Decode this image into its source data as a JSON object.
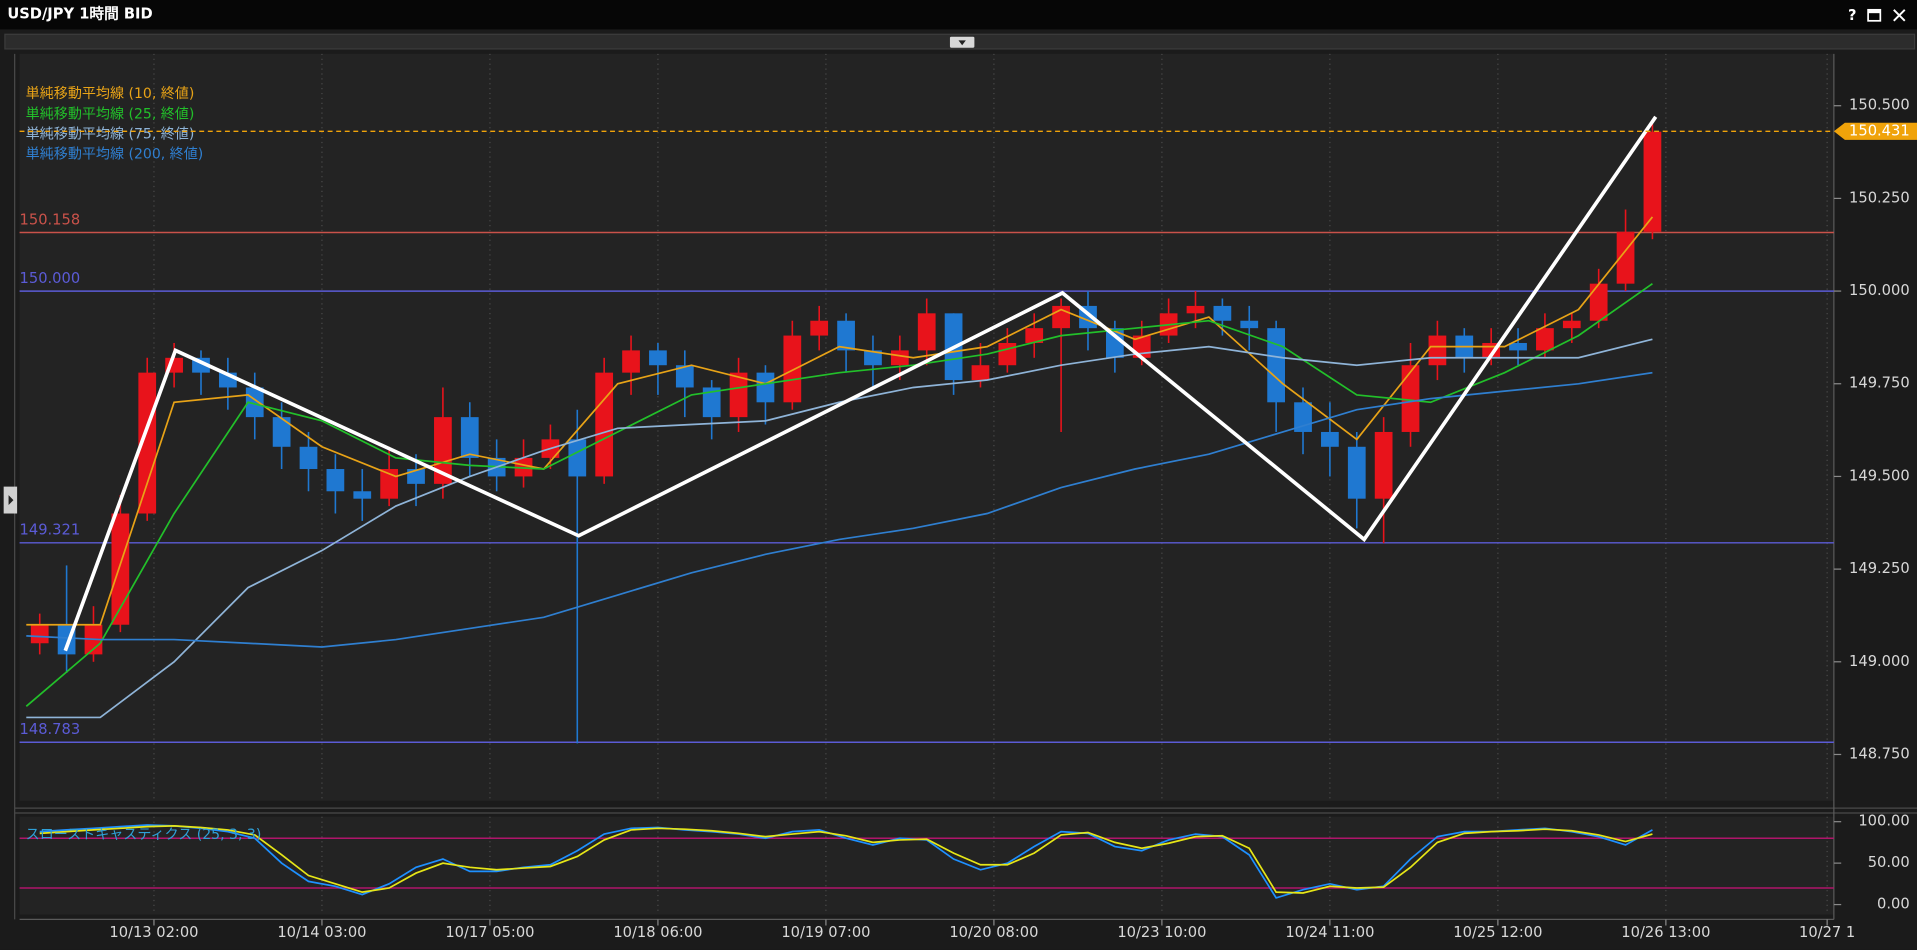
{
  "window": {
    "title": "USD/JPY 1時間 BID",
    "help": "?"
  },
  "chart_data": [
    {
      "type": "candlestick",
      "x": [
        2,
        6,
        10,
        14,
        18,
        22,
        26,
        30,
        34,
        38,
        42,
        46,
        50,
        54,
        58,
        62,
        66,
        70,
        74,
        78,
        82,
        86,
        90,
        94,
        98,
        102,
        106,
        110,
        114,
        118,
        122,
        126,
        130,
        134,
        138,
        142,
        146,
        150,
        154,
        158,
        162,
        166,
        170,
        174,
        178,
        182,
        186,
        190,
        194,
        198,
        202,
        206,
        210,
        214,
        218,
        222,
        226,
        230,
        234,
        238,
        242
      ],
      "open": [
        149.05,
        149.1,
        149.02,
        149.1,
        149.4,
        149.78,
        149.82,
        149.78,
        149.74,
        149.66,
        149.58,
        149.52,
        149.46,
        149.44,
        149.52,
        149.48,
        149.66,
        149.55,
        149.5,
        149.55,
        149.6,
        149.5,
        149.78,
        149.84,
        149.8,
        149.74,
        149.66,
        149.78,
        149.7,
        149.88,
        149.92,
        149.84,
        149.8,
        149.84,
        149.94,
        149.76,
        149.8,
        149.86,
        149.9,
        149.96,
        149.9,
        149.82,
        149.88,
        149.94,
        149.96,
        149.92,
        149.9,
        149.7,
        149.62,
        149.58,
        149.44,
        149.62,
        149.8,
        149.88,
        149.82,
        149.86,
        149.84,
        149.9,
        149.92,
        150.02,
        150.16
      ],
      "high": [
        149.13,
        149.26,
        149.15,
        149.45,
        149.82,
        149.86,
        149.84,
        149.82,
        149.78,
        149.7,
        149.62,
        149.56,
        149.52,
        149.58,
        149.56,
        149.74,
        149.7,
        149.6,
        149.6,
        149.64,
        149.68,
        149.82,
        149.88,
        149.86,
        149.84,
        149.76,
        149.82,
        149.8,
        149.92,
        149.96,
        149.94,
        149.88,
        149.88,
        149.98,
        149.94,
        149.86,
        149.9,
        149.94,
        149.98,
        150.0,
        149.92,
        149.92,
        149.98,
        150.0,
        149.98,
        149.96,
        149.92,
        149.74,
        149.7,
        149.62,
        149.66,
        149.86,
        149.92,
        149.9,
        149.9,
        149.9,
        149.94,
        149.94,
        150.06,
        150.22,
        150.45
      ],
      "low": [
        149.02,
        148.97,
        149.0,
        149.08,
        149.38,
        149.74,
        149.72,
        149.68,
        149.6,
        149.52,
        149.46,
        149.4,
        149.38,
        149.42,
        149.42,
        149.44,
        149.5,
        149.46,
        149.47,
        149.52,
        148.78,
        149.48,
        149.72,
        149.72,
        149.66,
        149.6,
        149.62,
        149.64,
        149.68,
        149.84,
        149.78,
        149.74,
        149.76,
        149.8,
        149.72,
        149.74,
        149.78,
        149.82,
        149.62,
        149.84,
        149.78,
        149.8,
        149.86,
        149.9,
        149.88,
        149.84,
        149.62,
        149.56,
        149.5,
        149.36,
        149.32,
        149.58,
        149.76,
        149.78,
        149.8,
        149.8,
        149.82,
        149.86,
        149.9,
        150.0,
        150.14
      ],
      "close": [
        149.1,
        149.02,
        149.1,
        149.4,
        149.78,
        149.82,
        149.78,
        149.74,
        149.66,
        149.58,
        149.52,
        149.46,
        149.44,
        149.52,
        149.48,
        149.66,
        149.55,
        149.5,
        149.55,
        149.6,
        149.5,
        149.78,
        149.84,
        149.8,
        149.74,
        149.66,
        149.78,
        149.7,
        149.88,
        149.92,
        149.84,
        149.8,
        149.84,
        149.94,
        149.76,
        149.8,
        149.86,
        149.9,
        149.96,
        149.9,
        149.82,
        149.88,
        149.94,
        149.96,
        149.92,
        149.9,
        149.7,
        149.62,
        149.58,
        149.44,
        149.62,
        149.8,
        149.88,
        149.82,
        149.86,
        149.84,
        149.9,
        149.92,
        150.02,
        150.16,
        150.43
      ],
      "up_color": "#e8131b",
      "down_color": "#1f78d1",
      "xlim": [
        -1,
        269
      ],
      "xticks": [
        {
          "value": 19,
          "label": "10/13 02:00"
        },
        {
          "value": 44,
          "label": "10/14 03:00"
        },
        {
          "value": 69,
          "label": "10/17 05:00"
        },
        {
          "value": 94,
          "label": "10/18 06:00"
        },
        {
          "value": 119,
          "label": "10/19 07:00"
        },
        {
          "value": 144,
          "label": "10/20 08:00"
        },
        {
          "value": 169,
          "label": "10/23 10:00"
        },
        {
          "value": 194,
          "label": "10/24 11:00"
        },
        {
          "value": 219,
          "label": "10/25 12:00"
        },
        {
          "value": 244,
          "label": "10/26 13:00"
        },
        {
          "value": 268,
          "label": "10/27 1"
        }
      ],
      "ylim": [
        148.625,
        150.64
      ],
      "yticks": [
        {
          "value": 148.75,
          "label": "148.750"
        },
        {
          "value": 149,
          "label": "149.000"
        },
        {
          "value": 149.25,
          "label": "149.250"
        },
        {
          "value": 149.5,
          "label": "149.500"
        },
        {
          "value": 149.75,
          "label": "149.750"
        },
        {
          "value": 150,
          "label": "150.000"
        },
        {
          "value": 150.25,
          "label": "150.250"
        },
        {
          "value": 150.5,
          "label": "150.500"
        }
      ],
      "grid": "x",
      "series": [
        {
          "name": "単純移動平均線 (10, 終値)",
          "color": "#e8a317",
          "x": [
            0,
            11,
            22,
            33,
            44,
            55,
            66,
            77,
            88,
            99,
            110,
            121,
            132,
            143,
            154,
            165,
            176,
            187,
            198,
            209,
            220,
            231,
            242
          ],
          "values": [
            149.1,
            149.1,
            149.7,
            149.72,
            149.58,
            149.5,
            149.56,
            149.52,
            149.75,
            149.8,
            149.75,
            149.85,
            149.82,
            149.85,
            149.95,
            149.87,
            149.93,
            149.75,
            149.6,
            149.85,
            149.85,
            149.95,
            150.2
          ]
        },
        {
          "name": "単純移動平均線 (25, 終値)",
          "color": "#22c02a",
          "x": [
            0,
            11,
            22,
            33,
            44,
            55,
            66,
            77,
            88,
            99,
            110,
            121,
            132,
            143,
            154,
            165,
            176,
            187,
            198,
            209,
            220,
            231,
            242
          ],
          "values": [
            148.88,
            149.05,
            149.4,
            149.7,
            149.65,
            149.55,
            149.53,
            149.52,
            149.62,
            149.72,
            149.75,
            149.78,
            149.8,
            149.83,
            149.88,
            149.9,
            149.92,
            149.85,
            149.72,
            149.7,
            149.78,
            149.88,
            150.02
          ]
        },
        {
          "name": "単純移動平均線 (75, 終値)",
          "color": "#8fb4d8",
          "x": [
            0,
            11,
            22,
            33,
            44,
            55,
            66,
            77,
            88,
            99,
            110,
            121,
            132,
            143,
            154,
            165,
            176,
            187,
            198,
            209,
            220,
            231,
            242
          ],
          "values": [
            148.85,
            148.85,
            149.0,
            149.2,
            149.3,
            149.42,
            149.5,
            149.57,
            149.63,
            149.64,
            149.65,
            149.7,
            149.74,
            149.76,
            149.8,
            149.83,
            149.85,
            149.82,
            149.8,
            149.82,
            149.82,
            149.82,
            149.87
          ]
        },
        {
          "name": "単純移動平均線 (200, 終値)",
          "color": "#2f7fd0",
          "x": [
            0,
            11,
            22,
            33,
            44,
            55,
            66,
            77,
            88,
            99,
            110,
            121,
            132,
            143,
            154,
            165,
            176,
            187,
            198,
            209,
            220,
            231,
            242
          ],
          "values": [
            149.07,
            149.06,
            149.06,
            149.05,
            149.04,
            149.06,
            149.09,
            149.12,
            149.18,
            149.24,
            149.29,
            149.33,
            149.36,
            149.4,
            149.47,
            149.52,
            149.56,
            149.62,
            149.68,
            149.71,
            149.73,
            149.75,
            149.78
          ]
        }
      ],
      "levels": [
        {
          "value": 150.158,
          "color": "#c9524a"
        },
        {
          "value": 150,
          "label": "150.000",
          "color": "#5b5bd6"
        },
        {
          "value": 149.321,
          "color": "#5b5bd6"
        },
        {
          "value": 148.783,
          "color": "#5b5bd6"
        }
      ],
      "last_price": 150.431,
      "last_color": "#f0a30a",
      "zigzag": {
        "color": "#ffffff",
        "x": [
          5.8,
          22.2,
          82.2,
          154.2,
          199.1,
          242.5
        ],
        "values": [
          149.03,
          149.84,
          149.34,
          149.995,
          149.33,
          150.47
        ]
      }
    },
    {
      "type": "line",
      "title": "スローストキャスティクス (25, 3, 3)",
      "title_color": "#2fa0d8",
      "x": [
        2,
        6,
        10,
        14,
        18,
        22,
        26,
        30,
        34,
        38,
        42,
        46,
        50,
        54,
        58,
        62,
        66,
        70,
        74,
        78,
        82,
        86,
        90,
        94,
        98,
        102,
        106,
        110,
        114,
        118,
        122,
        126,
        130,
        134,
        138,
        142,
        146,
        150,
        154,
        158,
        162,
        166,
        170,
        174,
        178,
        182,
        186,
        190,
        194,
        198,
        202,
        206,
        210,
        214,
        218,
        222,
        226,
        230,
        234,
        238,
        242
      ],
      "xlim": [
        -1,
        269
      ],
      "ylim": [
        -12,
        106
      ],
      "yticks": [
        {
          "value": 0,
          "label": "0.00"
        },
        {
          "value": 50,
          "label": "50.00"
        },
        {
          "value": 100,
          "label": "100.00"
        }
      ],
      "levels": [
        {
          "value": 80,
          "color": "#b0156b"
        },
        {
          "value": 20,
          "color": "#b0156b"
        }
      ],
      "series": [
        {
          "color": "#1e90ff",
          "values": [
            88,
            90,
            92,
            94,
            96,
            95,
            92,
            88,
            80,
            50,
            28,
            22,
            12,
            25,
            45,
            55,
            40,
            40,
            45,
            48,
            65,
            85,
            92,
            93,
            90,
            88,
            85,
            80,
            88,
            90,
            80,
            72,
            80,
            78,
            55,
            42,
            50,
            70,
            88,
            86,
            70,
            65,
            78,
            85,
            82,
            60,
            8,
            18,
            25,
            18,
            22,
            55,
            82,
            88,
            88,
            90,
            92,
            88,
            82,
            72,
            90
          ]
        },
        {
          "color": "#e6e617",
          "values": [
            86,
            88,
            90,
            92,
            94,
            95,
            93,
            90,
            84,
            60,
            35,
            25,
            15,
            20,
            38,
            50,
            45,
            42,
            44,
            46,
            58,
            78,
            90,
            92,
            91,
            89,
            86,
            82,
            85,
            88,
            83,
            75,
            78,
            79,
            62,
            48,
            48,
            62,
            84,
            87,
            75,
            68,
            74,
            82,
            83,
            68,
            15,
            14,
            22,
            20,
            21,
            45,
            75,
            86,
            88,
            89,
            91,
            89,
            84,
            76,
            85
          ]
        }
      ]
    }
  ]
}
